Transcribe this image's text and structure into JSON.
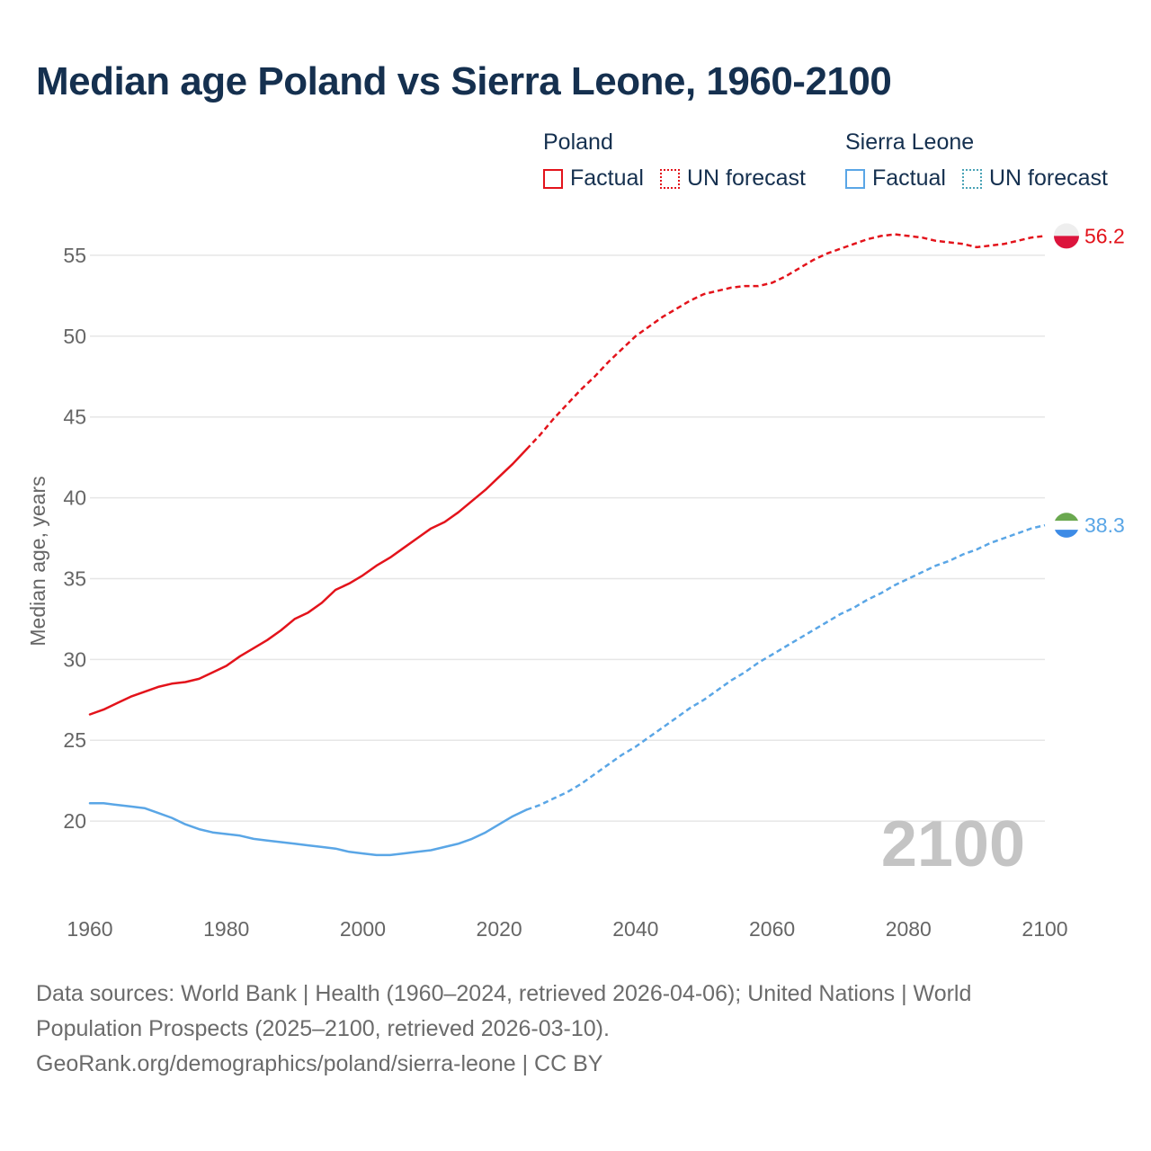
{
  "title": "Median age Poland vs Sierra Leone, 1960-2100",
  "legend": {
    "groups": [
      {
        "name": "Poland",
        "factual": "Factual",
        "forecast": "UN forecast"
      },
      {
        "name": "Sierra Leone",
        "factual": "Factual",
        "forecast": "UN forecast"
      }
    ]
  },
  "footer": {
    "line1": "Data sources: World Bank | Health (1960–2024, retrieved 2026-04-06); United Nations | World",
    "line2": "Population Prospects (2025–2100, retrieved 2026-03-10).",
    "line3": "GeoRank.org/demographics/poland/sierra-leone | CC BY"
  },
  "colors": {
    "title": "#15304f",
    "poland": "#e3131b",
    "sierra_leone": "#5aa6e6",
    "sierra_leone_legend_forecast": "#4aa3b6",
    "grid": "#e6e6e6",
    "axis_text": "#666666",
    "year_watermark": "#c4c4c4"
  },
  "chart_data": {
    "type": "line",
    "title": "Median age Poland vs Sierra Leone, 1960-2100",
    "xlabel": "",
    "ylabel": "Median age, years",
    "xlim": [
      1960,
      2100
    ],
    "ylim": [
      15,
      58
    ],
    "x_ticks": [
      1960,
      1980,
      2000,
      2020,
      2040,
      2060,
      2080,
      2100
    ],
    "y_ticks": [
      20,
      25,
      30,
      35,
      40,
      45,
      50,
      55
    ],
    "grid": true,
    "year_label": "2100",
    "series": [
      {
        "name": "Poland",
        "kind": "Factual",
        "style": "solid",
        "color": "#e3131b",
        "points": [
          [
            1960,
            26.6
          ],
          [
            1962,
            26.9
          ],
          [
            1964,
            27.3
          ],
          [
            1966,
            27.7
          ],
          [
            1968,
            28.0
          ],
          [
            1970,
            28.3
          ],
          [
            1972,
            28.5
          ],
          [
            1974,
            28.6
          ],
          [
            1976,
            28.8
          ],
          [
            1978,
            29.2
          ],
          [
            1980,
            29.6
          ],
          [
            1982,
            30.2
          ],
          [
            1984,
            30.7
          ],
          [
            1986,
            31.2
          ],
          [
            1988,
            31.8
          ],
          [
            1990,
            32.5
          ],
          [
            1992,
            32.9
          ],
          [
            1994,
            33.5
          ],
          [
            1996,
            34.3
          ],
          [
            1998,
            34.7
          ],
          [
            2000,
            35.2
          ],
          [
            2002,
            35.8
          ],
          [
            2004,
            36.3
          ],
          [
            2006,
            36.9
          ],
          [
            2008,
            37.5
          ],
          [
            2010,
            38.1
          ],
          [
            2012,
            38.5
          ],
          [
            2014,
            39.1
          ],
          [
            2016,
            39.8
          ],
          [
            2018,
            40.5
          ],
          [
            2020,
            41.3
          ],
          [
            2022,
            42.1
          ],
          [
            2024,
            43.0
          ]
        ]
      },
      {
        "name": "Poland",
        "kind": "UN forecast",
        "style": "dashed",
        "color": "#e3131b",
        "points": [
          [
            2024,
            43.0
          ],
          [
            2026,
            43.9
          ],
          [
            2028,
            44.9
          ],
          [
            2030,
            45.8
          ],
          [
            2032,
            46.7
          ],
          [
            2034,
            47.5
          ],
          [
            2036,
            48.4
          ],
          [
            2038,
            49.2
          ],
          [
            2040,
            50.0
          ],
          [
            2042,
            50.6
          ],
          [
            2044,
            51.2
          ],
          [
            2046,
            51.7
          ],
          [
            2048,
            52.2
          ],
          [
            2050,
            52.6
          ],
          [
            2052,
            52.8
          ],
          [
            2054,
            53.0
          ],
          [
            2056,
            53.1
          ],
          [
            2058,
            53.1
          ],
          [
            2060,
            53.3
          ],
          [
            2062,
            53.7
          ],
          [
            2064,
            54.2
          ],
          [
            2066,
            54.7
          ],
          [
            2068,
            55.1
          ],
          [
            2070,
            55.4
          ],
          [
            2072,
            55.7
          ],
          [
            2074,
            56.0
          ],
          [
            2076,
            56.2
          ],
          [
            2078,
            56.3
          ],
          [
            2080,
            56.2
          ],
          [
            2082,
            56.1
          ],
          [
            2084,
            55.9
          ],
          [
            2086,
            55.8
          ],
          [
            2088,
            55.7
          ],
          [
            2090,
            55.5
          ],
          [
            2092,
            55.6
          ],
          [
            2094,
            55.7
          ],
          [
            2096,
            55.9
          ],
          [
            2098,
            56.1
          ],
          [
            2100,
            56.2
          ]
        ]
      },
      {
        "name": "Sierra Leone",
        "kind": "Factual",
        "style": "solid",
        "color": "#5aa6e6",
        "points": [
          [
            1960,
            21.1
          ],
          [
            1962,
            21.1
          ],
          [
            1964,
            21.0
          ],
          [
            1966,
            20.9
          ],
          [
            1968,
            20.8
          ],
          [
            1970,
            20.5
          ],
          [
            1972,
            20.2
          ],
          [
            1974,
            19.8
          ],
          [
            1976,
            19.5
          ],
          [
            1978,
            19.3
          ],
          [
            1980,
            19.2
          ],
          [
            1982,
            19.1
          ],
          [
            1984,
            18.9
          ],
          [
            1986,
            18.8
          ],
          [
            1988,
            18.7
          ],
          [
            1990,
            18.6
          ],
          [
            1992,
            18.5
          ],
          [
            1994,
            18.4
          ],
          [
            1996,
            18.3
          ],
          [
            1998,
            18.1
          ],
          [
            2000,
            18.0
          ],
          [
            2002,
            17.9
          ],
          [
            2004,
            17.9
          ],
          [
            2006,
            18.0
          ],
          [
            2008,
            18.1
          ],
          [
            2010,
            18.2
          ],
          [
            2012,
            18.4
          ],
          [
            2014,
            18.6
          ],
          [
            2016,
            18.9
          ],
          [
            2018,
            19.3
          ],
          [
            2020,
            19.8
          ],
          [
            2022,
            20.3
          ],
          [
            2024,
            20.7
          ]
        ]
      },
      {
        "name": "Sierra Leone",
        "kind": "UN forecast",
        "style": "dashed",
        "color": "#5aa6e6",
        "points": [
          [
            2024,
            20.7
          ],
          [
            2026,
            21.0
          ],
          [
            2028,
            21.4
          ],
          [
            2030,
            21.8
          ],
          [
            2032,
            22.3
          ],
          [
            2034,
            22.9
          ],
          [
            2036,
            23.5
          ],
          [
            2038,
            24.1
          ],
          [
            2040,
            24.6
          ],
          [
            2042,
            25.2
          ],
          [
            2044,
            25.8
          ],
          [
            2046,
            26.4
          ],
          [
            2048,
            27.0
          ],
          [
            2050,
            27.5
          ],
          [
            2052,
            28.1
          ],
          [
            2054,
            28.7
          ],
          [
            2056,
            29.2
          ],
          [
            2058,
            29.8
          ],
          [
            2060,
            30.3
          ],
          [
            2062,
            30.8
          ],
          [
            2064,
            31.3
          ],
          [
            2066,
            31.8
          ],
          [
            2068,
            32.3
          ],
          [
            2070,
            32.8
          ],
          [
            2072,
            33.2
          ],
          [
            2074,
            33.7
          ],
          [
            2076,
            34.1
          ],
          [
            2078,
            34.6
          ],
          [
            2080,
            35.0
          ],
          [
            2082,
            35.4
          ],
          [
            2084,
            35.8
          ],
          [
            2086,
            36.1
          ],
          [
            2088,
            36.5
          ],
          [
            2090,
            36.8
          ],
          [
            2092,
            37.2
          ],
          [
            2094,
            37.5
          ],
          [
            2096,
            37.8
          ],
          [
            2098,
            38.1
          ],
          [
            2100,
            38.3
          ]
        ]
      }
    ],
    "end_labels": [
      {
        "series": "Poland",
        "value": 56.2,
        "label": "56.2",
        "color": "#e3131b",
        "flag": "poland-flag-icon"
      },
      {
        "series": "Sierra Leone",
        "value": 38.3,
        "label": "38.3",
        "color": "#5aa6e6",
        "flag": "sierra-leone-flag-icon"
      }
    ]
  }
}
